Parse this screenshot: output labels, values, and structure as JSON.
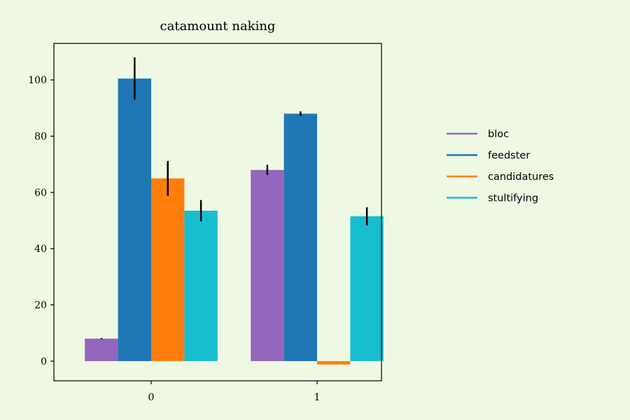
{
  "chart_data": {
    "type": "bar",
    "title": "catamount naking",
    "xlabel": "",
    "ylabel": "",
    "categories": [
      "0",
      "1"
    ],
    "ylim": [
      -7,
      113
    ],
    "yticks": [
      0,
      20,
      40,
      60,
      80,
      100
    ],
    "grid": false,
    "legend_position": "right",
    "series": [
      {
        "name": "bloc",
        "color": "#9467bd",
        "values": [
          8,
          68
        ],
        "errors": [
          0.2,
          1.8
        ]
      },
      {
        "name": "feedster",
        "color": "#1f77b4",
        "values": [
          100.5,
          88
        ],
        "errors": [
          7.5,
          0.8
        ]
      },
      {
        "name": "candidatures",
        "color": "#ff7f0e",
        "values": [
          65,
          -1.2
        ],
        "errors": [
          6.2,
          0
        ]
      },
      {
        "name": "stultifying",
        "color": "#17becf",
        "values": [
          53.5,
          51.5
        ],
        "errors": [
          3.8,
          3.2
        ]
      }
    ]
  }
}
